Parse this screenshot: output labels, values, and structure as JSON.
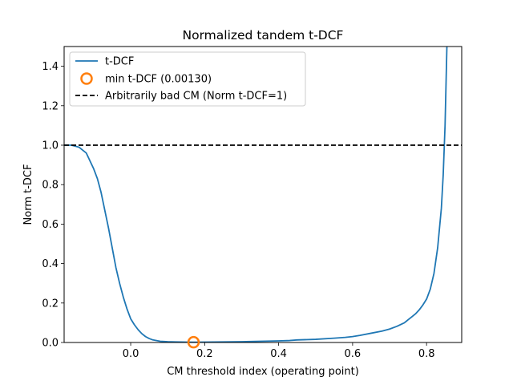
{
  "chart_data": {
    "type": "line",
    "title": "Normalized tandem t-DCF",
    "xlabel": "CM threshold index (operating point)",
    "ylabel": "Norm t-DCF",
    "xlim": [
      -0.18,
      0.895
    ],
    "ylim": [
      0.0,
      1.5
    ],
    "x_ticks": [
      {
        "value": 0.0,
        "label": "0.0"
      },
      {
        "value": 0.2,
        "label": "0.2"
      },
      {
        "value": 0.4,
        "label": "0.4"
      },
      {
        "value": 0.6,
        "label": "0.6"
      },
      {
        "value": 0.8,
        "label": "0.8"
      }
    ],
    "y_ticks": [
      {
        "value": 0.0,
        "label": "0.0"
      },
      {
        "value": 0.2,
        "label": "0.2"
      },
      {
        "value": 0.4,
        "label": "0.4"
      },
      {
        "value": 0.6,
        "label": "0.6"
      },
      {
        "value": 0.8,
        "label": "0.8"
      },
      {
        "value": 1.0,
        "label": "1.0"
      },
      {
        "value": 1.2,
        "label": "1.2"
      },
      {
        "value": 1.4,
        "label": "1.4"
      }
    ],
    "grid": false,
    "legend_position": "top-left",
    "series": [
      {
        "name": "t-DCF",
        "kind": "line",
        "color": "#1f77b4",
        "x": [
          -0.18,
          -0.16,
          -0.14,
          -0.12,
          -0.1,
          -0.09,
          -0.08,
          -0.07,
          -0.06,
          -0.05,
          -0.04,
          -0.03,
          -0.02,
          -0.01,
          0.0,
          0.01,
          0.02,
          0.03,
          0.04,
          0.05,
          0.06,
          0.08,
          0.1,
          0.12,
          0.15,
          0.17,
          0.2,
          0.25,
          0.3,
          0.35,
          0.4,
          0.43,
          0.45,
          0.5,
          0.55,
          0.58,
          0.6,
          0.62,
          0.65,
          0.68,
          0.7,
          0.72,
          0.74,
          0.75,
          0.76,
          0.77,
          0.78,
          0.79,
          0.8,
          0.81,
          0.82,
          0.83,
          0.84,
          0.845,
          0.85,
          0.855
        ],
        "y": [
          1.0,
          1.0,
          0.99,
          0.96,
          0.88,
          0.83,
          0.76,
          0.67,
          0.58,
          0.48,
          0.38,
          0.3,
          0.23,
          0.17,
          0.12,
          0.09,
          0.065,
          0.045,
          0.03,
          0.02,
          0.013,
          0.006,
          0.004,
          0.003,
          0.002,
          0.0013,
          0.002,
          0.003,
          0.004,
          0.006,
          0.008,
          0.01,
          0.013,
          0.016,
          0.022,
          0.026,
          0.03,
          0.036,
          0.047,
          0.058,
          0.068,
          0.082,
          0.1,
          0.115,
          0.13,
          0.145,
          0.165,
          0.19,
          0.22,
          0.27,
          0.35,
          0.48,
          0.68,
          0.85,
          1.1,
          1.5
        ]
      },
      {
        "name": "min t-DCF (0.00130)",
        "kind": "marker",
        "color": "#ff7f0e",
        "x": [
          0.17
        ],
        "y": [
          0.0013
        ]
      },
      {
        "name": "Arbitrarily bad CM (Norm t-DCF=1)",
        "kind": "hline",
        "color": "#000000",
        "y": 1.0
      }
    ]
  }
}
